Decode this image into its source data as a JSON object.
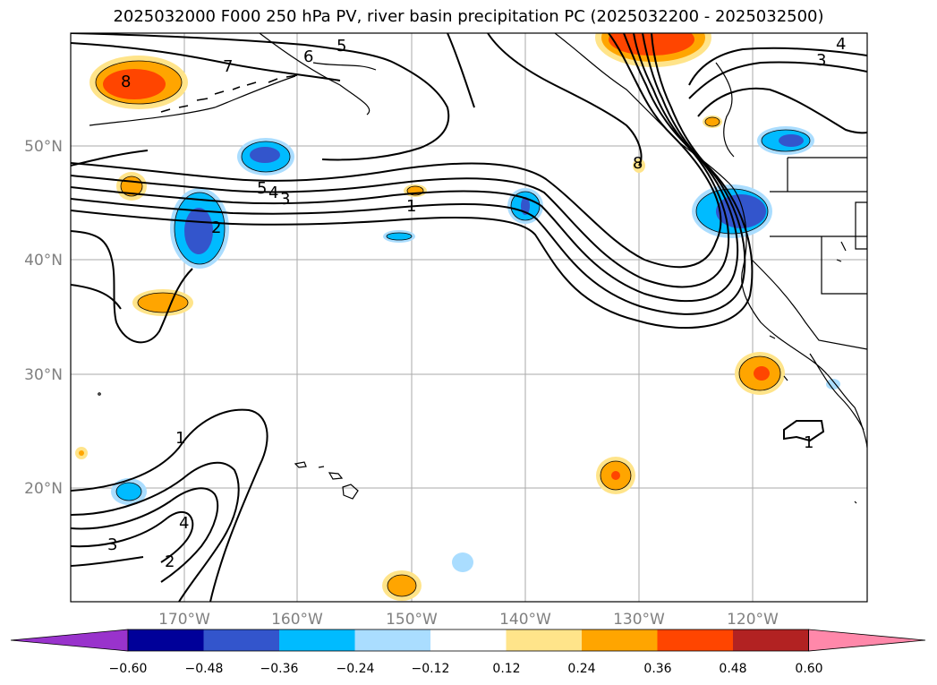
{
  "title": "2025032000 F000 250 hPa PV, river basin precipitation PC (2025032200 - 2025032500)",
  "lat_labels": [
    "50°N",
    "40°N",
    "30°N",
    "20°N"
  ],
  "lon_labels": [
    "170°W",
    "160°W",
    "150°W",
    "140°W",
    "130°W",
    "120°W"
  ],
  "colorbar": {
    "ticks": [
      "−0.60",
      "−0.48",
      "−0.36",
      "−0.24",
      "−0.12",
      "0.12",
      "0.24",
      "0.36",
      "0.48",
      "0.60"
    ],
    "colors": [
      "#9933cc",
      "#000099",
      "#3355cc",
      "#00bbff",
      "#aaddff",
      "#ffffff",
      "#ffe48a",
      "#ffa500",
      "#ff4500",
      "#b22222",
      "#ff88aa"
    ]
  },
  "pv_contour_labels": [
    "8",
    "7",
    "6",
    "5",
    "5",
    "4",
    "3",
    "2",
    "1",
    "8",
    "3",
    "4",
    "1",
    "1",
    "4",
    "3",
    "2"
  ],
  "colors": {
    "pos_light": "#ffe48a",
    "pos_mid": "#ffa500",
    "pos_strong": "#ff4500",
    "neg_light": "#aaddff",
    "neg_mid": "#00bbff",
    "neg_strong": "#3355cc"
  }
}
